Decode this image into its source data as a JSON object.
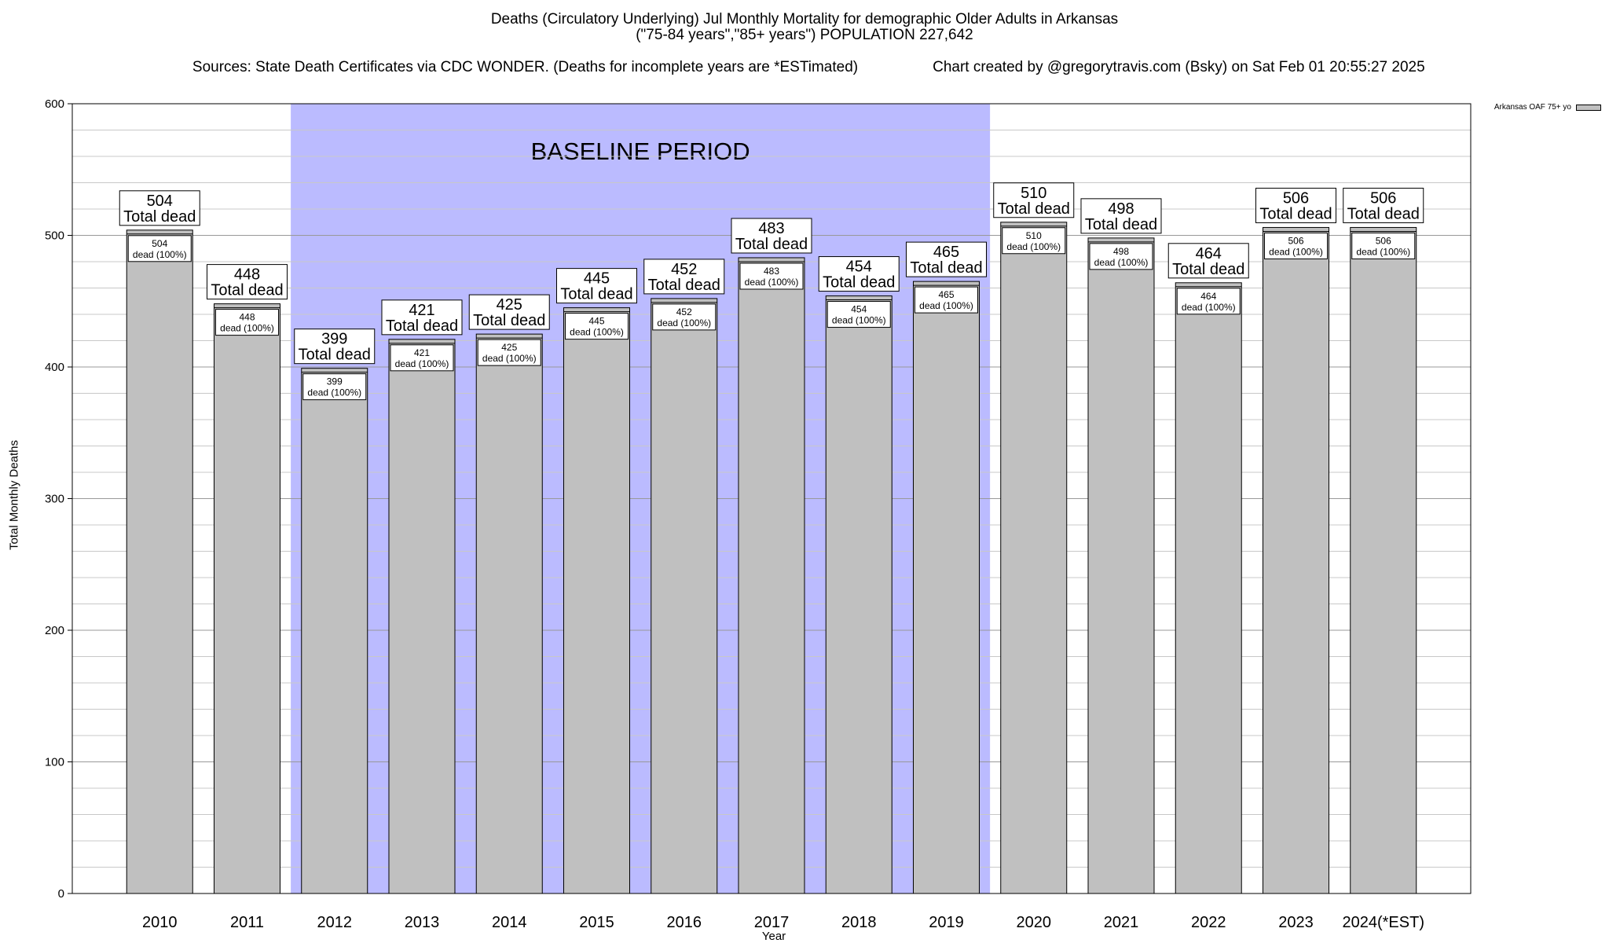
{
  "title": {
    "line1": "Deaths (Circulatory Underlying) Jul Monthly Mortality for demographic Older Adults in Arkansas",
    "line2": "(\"75-84 years\",\"85+ years\") POPULATION 227,642",
    "sources": "Sources: State Death Certificates via CDC WONDER. (Deaths for incomplete years are *ESTimated)",
    "credit": "Chart created by @gregorytravis.com (Bsky) on Sat Feb 01 20:55:27 2025"
  },
  "legend": {
    "label": "Arkansas OAF 75+ yo",
    "color": "#c0c0c0"
  },
  "chart_data": {
    "type": "bar",
    "xlabel": "Year",
    "ylabel": "Total Monthly Deaths",
    "ylim": [
      0,
      600
    ],
    "yticks": [
      0,
      100,
      200,
      300,
      400,
      500,
      600
    ],
    "ygrid_step": 20,
    "grid": true,
    "categories": [
      "2010",
      "2011",
      "2012",
      "2013",
      "2014",
      "2015",
      "2016",
      "2017",
      "2018",
      "2019",
      "2020",
      "2021",
      "2022",
      "2023",
      "2024(*EST)"
    ],
    "values": [
      504,
      448,
      399,
      421,
      425,
      445,
      452,
      483,
      454,
      465,
      510,
      498,
      464,
      506,
      506
    ],
    "total_label_suffix": "Total dead",
    "inner_label_suffix": "dead (100%)",
    "bar_color": "#c0c0c0",
    "baseline": {
      "label": "BASELINE PERIOD",
      "start": "2012",
      "end": "2019",
      "color": "#bbbbff"
    },
    "legend_position": "top-right"
  }
}
